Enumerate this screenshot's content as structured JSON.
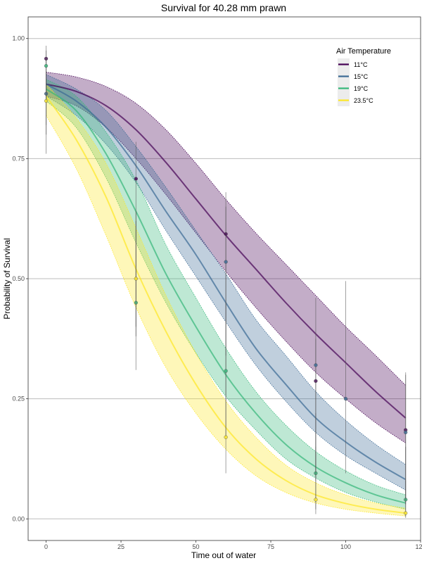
{
  "chart_data": {
    "type": "line",
    "title": "Survival for 40.28 mm prawn",
    "xlabel": "Time out of water",
    "ylabel": "Probability of Survival",
    "xlim": [
      -6,
      125
    ],
    "ylim": [
      -0.045,
      1.045
    ],
    "x_ticks": [
      0,
      25,
      50,
      75,
      100,
      125
    ],
    "x_tick_labels": [
      "0",
      "25",
      "50",
      "75",
      "100",
      "125"
    ],
    "y_ticks": [
      0,
      0.25,
      0.5,
      0.75,
      1.0
    ],
    "y_tick_labels": [
      "0.00",
      "0.25",
      "0.50",
      "0.75",
      "1.00"
    ],
    "grid": true,
    "legend": {
      "title": "Air Temperature",
      "placement": "top-right"
    },
    "x": [
      0,
      10,
      20,
      30,
      40,
      50,
      60,
      70,
      80,
      90,
      100,
      110,
      120
    ],
    "series": [
      {
        "name": "11°C",
        "color": "#440154",
        "values": [
          0.905,
          0.89,
          0.86,
          0.81,
          0.742,
          0.666,
          0.59,
          0.52,
          0.45,
          0.385,
          0.325,
          0.265,
          0.21
        ],
        "lower": [
          0.88,
          0.86,
          0.815,
          0.75,
          0.675,
          0.595,
          0.515,
          0.44,
          0.37,
          0.305,
          0.25,
          0.2,
          0.158
        ],
        "upper": [
          0.93,
          0.92,
          0.9,
          0.865,
          0.81,
          0.74,
          0.665,
          0.595,
          0.53,
          0.465,
          0.4,
          0.34,
          0.278
        ],
        "points": [
          {
            "x": 0,
            "y": 0.958,
            "lo": 0.82,
            "hi": 0.985
          },
          {
            "x": 30,
            "y": 0.708,
            "lo": 0.4,
            "hi": 0.785
          },
          {
            "x": 60,
            "y": 0.593,
            "lo": 0.34,
            "hi": 0.68
          },
          {
            "x": 90,
            "y": 0.287,
            "lo": 0.08,
            "hi": 0.375
          },
          {
            "x": 120,
            "y": 0.185,
            "lo": 0.04,
            "hi": 0.3
          }
        ]
      },
      {
        "name": "15°C",
        "color": "#3b6a94",
        "values": [
          0.905,
          0.87,
          0.815,
          0.735,
          0.64,
          0.55,
          0.45,
          0.355,
          0.28,
          0.21,
          0.16,
          0.118,
          0.082
        ],
        "lower": [
          0.88,
          0.84,
          0.78,
          0.7,
          0.6,
          0.505,
          0.41,
          0.32,
          0.245,
          0.18,
          0.132,
          0.095,
          0.06
        ],
        "upper": [
          0.925,
          0.895,
          0.85,
          0.775,
          0.69,
          0.6,
          0.51,
          0.415,
          0.34,
          0.265,
          0.205,
          0.155,
          0.113
        ],
        "points": [
          {
            "x": 0,
            "y": 0.885,
            "lo": 0.76,
            "hi": 0.96
          },
          {
            "x": 60,
            "y": 0.535,
            "lo": 0.3,
            "hi": 0.65
          },
          {
            "x": 90,
            "y": 0.32,
            "lo": 0.1,
            "hi": 0.46
          },
          {
            "x": 100,
            "y": 0.25,
            "lo": 0.095,
            "hi": 0.495
          },
          {
            "x": 120,
            "y": 0.18,
            "lo": 0.03,
            "hi": 0.305
          }
        ]
      },
      {
        "name": "19°C",
        "color": "#35b779",
        "values": [
          0.895,
          0.85,
          0.76,
          0.64,
          0.51,
          0.4,
          0.3,
          0.22,
          0.155,
          0.108,
          0.075,
          0.05,
          0.033
        ],
        "lower": [
          0.87,
          0.815,
          0.71,
          0.575,
          0.45,
          0.345,
          0.255,
          0.185,
          0.125,
          0.085,
          0.055,
          0.035,
          0.02
        ],
        "upper": [
          0.915,
          0.88,
          0.805,
          0.705,
          0.57,
          0.46,
          0.355,
          0.265,
          0.195,
          0.14,
          0.1,
          0.07,
          0.05
        ],
        "points": [
          {
            "x": 0,
            "y": 0.943,
            "lo": 0.87,
            "hi": 0.975
          },
          {
            "x": 30,
            "y": 0.45,
            "lo": 0.31,
            "hi": 0.62
          },
          {
            "x": 60,
            "y": 0.308,
            "lo": 0.17,
            "hi": 0.45
          },
          {
            "x": 90,
            "y": 0.095,
            "lo": 0.02,
            "hi": 0.22
          },
          {
            "x": 120,
            "y": 0.04,
            "lo": 0.005,
            "hi": 0.15
          }
        ]
      },
      {
        "name": "23.5°C",
        "color": "#fde725",
        "values": [
          0.88,
          0.79,
          0.67,
          0.52,
          0.39,
          0.28,
          0.19,
          0.125,
          0.08,
          0.05,
          0.032,
          0.02,
          0.012
        ],
        "lower": [
          0.84,
          0.73,
          0.59,
          0.44,
          0.315,
          0.22,
          0.145,
          0.09,
          0.055,
          0.033,
          0.02,
          0.012,
          0.006
        ],
        "upper": [
          0.905,
          0.835,
          0.74,
          0.605,
          0.465,
          0.345,
          0.245,
          0.17,
          0.112,
          0.075,
          0.05,
          0.033,
          0.022
        ],
        "points": [
          {
            "x": 0,
            "y": 0.87,
            "lo": 0.8,
            "hi": 0.93
          },
          {
            "x": 30,
            "y": 0.5,
            "lo": 0.38,
            "hi": 0.64
          },
          {
            "x": 60,
            "y": 0.17,
            "lo": 0.095,
            "hi": 0.3
          },
          {
            "x": 90,
            "y": 0.04,
            "lo": 0.01,
            "hi": 0.15
          },
          {
            "x": 120,
            "y": 0.012,
            "lo": 0.002,
            "hi": 0.08
          }
        ]
      }
    ]
  }
}
